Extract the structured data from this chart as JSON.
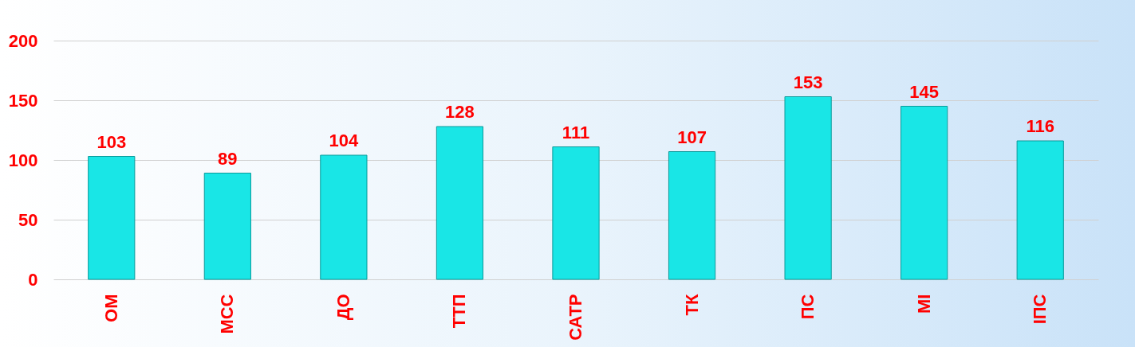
{
  "chart_data": {
    "type": "bar",
    "categories": [
      "ОМ",
      "МСС",
      "ДО",
      "ТТП",
      "САТР",
      "ТК",
      "ПС",
      "МІ",
      "ІПС"
    ],
    "values": [
      103,
      89,
      104,
      128,
      111,
      107,
      153,
      145,
      116
    ],
    "color": "#19e6e6",
    "ylim": [
      0,
      200
    ],
    "yticks": [
      0,
      50,
      100,
      150,
      200
    ],
    "grid": "y",
    "data_labels": true
  }
}
